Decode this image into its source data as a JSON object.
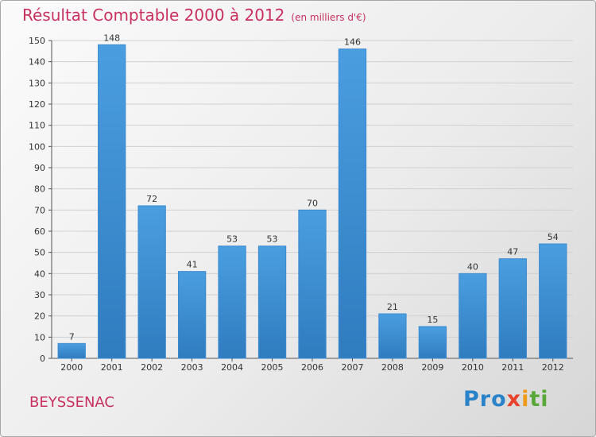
{
  "header": {
    "title": "Résultat Comptable 2000 à 2012",
    "subtitle": "(en milliers d'€)"
  },
  "commune": "BEYSSENAC",
  "logo": {
    "p1": "Pro",
    "p2": "x",
    "p3": "i",
    "p4": "ti"
  },
  "chart_data": {
    "type": "bar",
    "title": "Résultat Comptable 2000 à 2012",
    "subtitle": "(en milliers d'€)",
    "categories": [
      "2000",
      "2001",
      "2002",
      "2003",
      "2004",
      "2005",
      "2006",
      "2007",
      "2008",
      "2009",
      "2010",
      "2011",
      "2012"
    ],
    "values": [
      7,
      148,
      72,
      41,
      53,
      53,
      70,
      146,
      21,
      15,
      40,
      47,
      54
    ],
    "yticks": [
      0,
      10,
      20,
      30,
      40,
      50,
      60,
      70,
      80,
      90,
      100,
      110,
      120,
      130,
      140,
      150
    ],
    "ylim": [
      0,
      150
    ],
    "xlabel": "",
    "ylabel": "",
    "colors": {
      "bar": "#4a9ee0",
      "bar_dark": "#2f7cbf",
      "grid": "#d0d0d0",
      "axis": "#555555"
    }
  }
}
